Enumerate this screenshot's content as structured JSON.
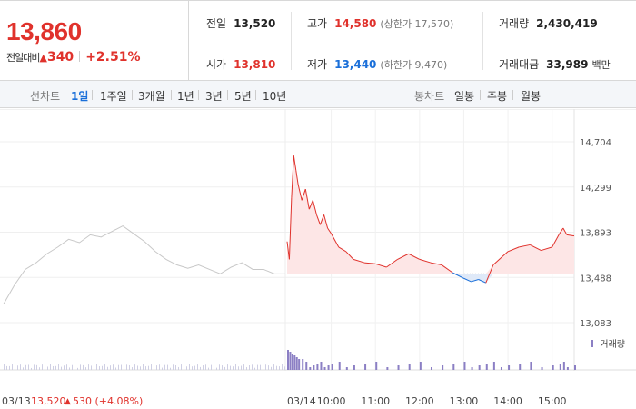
{
  "summary": {
    "price": "13,860",
    "change_label": "전일대비",
    "change_arrow": "▲",
    "change_amount": "340",
    "change_percent": "+2.51%",
    "prev_close_label": "전일",
    "prev_close": "13,520",
    "open_label": "시가",
    "open": "13,810",
    "high_label": "고가",
    "high": "14,580",
    "upper_limit": "(상한가 17,570)",
    "low_label": "저가",
    "low": "13,440",
    "lower_limit": "(하한가 9,470)",
    "volume_label": "거래량",
    "volume": "2,430,419",
    "value_label": "거래대금",
    "value": "33,989",
    "value_unit": "백만"
  },
  "period_tabs": {
    "title": "선차트",
    "items": [
      "1일",
      "1주일",
      "3개월",
      "1년",
      "3년",
      "5년",
      "10년"
    ],
    "active_index": 0
  },
  "candle_tabs": {
    "title": "봉차트",
    "items": [
      "일봉",
      "주봉",
      "월봉"
    ]
  },
  "colors": {
    "up": "#e0322c",
    "down": "#1a6fd9",
    "prev_line": "#c8c8c8",
    "volume": "#8b7fc4"
  },
  "chart_data": {
    "type": "line",
    "y_ticks": [
      "14,704",
      "14,299",
      "13,893",
      "13,488",
      "13,083"
    ],
    "ylim": [
      13083,
      14704
    ],
    "baseline": 13520,
    "volume_label": "거래량",
    "prev_day": {
      "date": "03/13",
      "close_text": "13,520",
      "change_arrow": "▲",
      "change_text": "530 (+4.08%)",
      "series": [
        [
          "09:00",
          13250
        ],
        [
          "09:15",
          13420
        ],
        [
          "09:30",
          13560
        ],
        [
          "09:45",
          13620
        ],
        [
          "10:00",
          13700
        ],
        [
          "10:15",
          13760
        ],
        [
          "10:30",
          13830
        ],
        [
          "10:45",
          13800
        ],
        [
          "11:00",
          13870
        ],
        [
          "11:15",
          13850
        ],
        [
          "11:30",
          13900
        ],
        [
          "11:45",
          13950
        ],
        [
          "12:00",
          13880
        ],
        [
          "12:15",
          13810
        ],
        [
          "12:30",
          13720
        ],
        [
          "12:45",
          13650
        ],
        [
          "13:00",
          13600
        ],
        [
          "13:15",
          13570
        ],
        [
          "13:30",
          13600
        ],
        [
          "13:45",
          13560
        ],
        [
          "14:00",
          13520
        ],
        [
          "14:15",
          13580
        ],
        [
          "14:30",
          13620
        ],
        [
          "14:45",
          13560
        ],
        [
          "15:00",
          13560
        ],
        [
          "15:15",
          13520
        ],
        [
          "15:30",
          13520
        ]
      ]
    },
    "today": {
      "date": "03/14",
      "x_ticks": [
        "10:00",
        "11:00",
        "12:00",
        "13:00",
        "14:00",
        "15:00"
      ],
      "series": [
        [
          "09:00",
          13810
        ],
        [
          "09:03",
          13650
        ],
        [
          "09:06",
          14200
        ],
        [
          "09:09",
          14580
        ],
        [
          "09:12",
          14450
        ],
        [
          "09:15",
          14320
        ],
        [
          "09:20",
          14180
        ],
        [
          "09:25",
          14280
        ],
        [
          "09:30",
          14100
        ],
        [
          "09:35",
          14180
        ],
        [
          "09:40",
          14050
        ],
        [
          "09:45",
          13960
        ],
        [
          "09:50",
          14050
        ],
        [
          "09:55",
          13930
        ],
        [
          "10:00",
          13880
        ],
        [
          "10:10",
          13760
        ],
        [
          "10:20",
          13720
        ],
        [
          "10:30",
          13650
        ],
        [
          "10:45",
          13620
        ],
        [
          "11:00",
          13610
        ],
        [
          "11:15",
          13580
        ],
        [
          "11:30",
          13650
        ],
        [
          "11:45",
          13700
        ],
        [
          "12:00",
          13650
        ],
        [
          "12:15",
          13620
        ],
        [
          "12:30",
          13600
        ],
        [
          "12:45",
          13530
        ],
        [
          "13:00",
          13480
        ],
        [
          "13:10",
          13450
        ],
        [
          "13:20",
          13470
        ],
        [
          "13:30",
          13440
        ],
        [
          "13:40",
          13600
        ],
        [
          "13:50",
          13660
        ],
        [
          "14:00",
          13720
        ],
        [
          "14:15",
          13760
        ],
        [
          "14:30",
          13780
        ],
        [
          "14:45",
          13730
        ],
        [
          "15:00",
          13760
        ],
        [
          "15:10",
          13880
        ],
        [
          "15:15",
          13930
        ],
        [
          "15:20",
          13870
        ],
        [
          "15:30",
          13860
        ]
      ]
    }
  }
}
